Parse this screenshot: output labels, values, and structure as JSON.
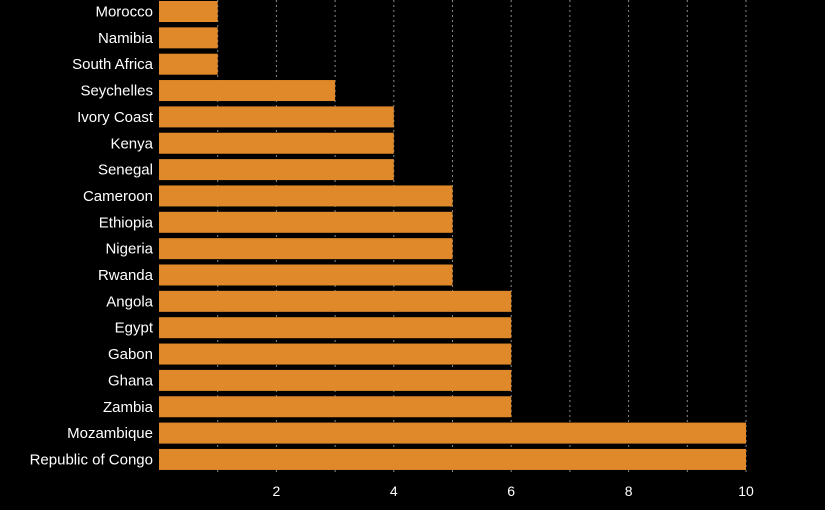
{
  "chart_data": {
    "type": "bar",
    "orientation": "horizontal",
    "categories": [
      "Morocco",
      "Namibia",
      "South Africa",
      "Seychelles",
      "Ivory Coast",
      "Kenya",
      "Senegal",
      "Cameroon",
      "Ethiopia",
      "Nigeria",
      "Rwanda",
      "Angola",
      "Egypt",
      "Gabon",
      "Ghana",
      "Zambia",
      "Mozambique",
      "Republic of Congo"
    ],
    "values": [
      1,
      1,
      1,
      3,
      4,
      4,
      4,
      5,
      5,
      5,
      5,
      6,
      6,
      6,
      6,
      6,
      10,
      10
    ],
    "xlim": [
      0,
      10
    ],
    "xticks": [
      2,
      4,
      6,
      8,
      10
    ],
    "grid": "vertical dotted",
    "bar_color": "#e0892a",
    "background": "#000000"
  }
}
